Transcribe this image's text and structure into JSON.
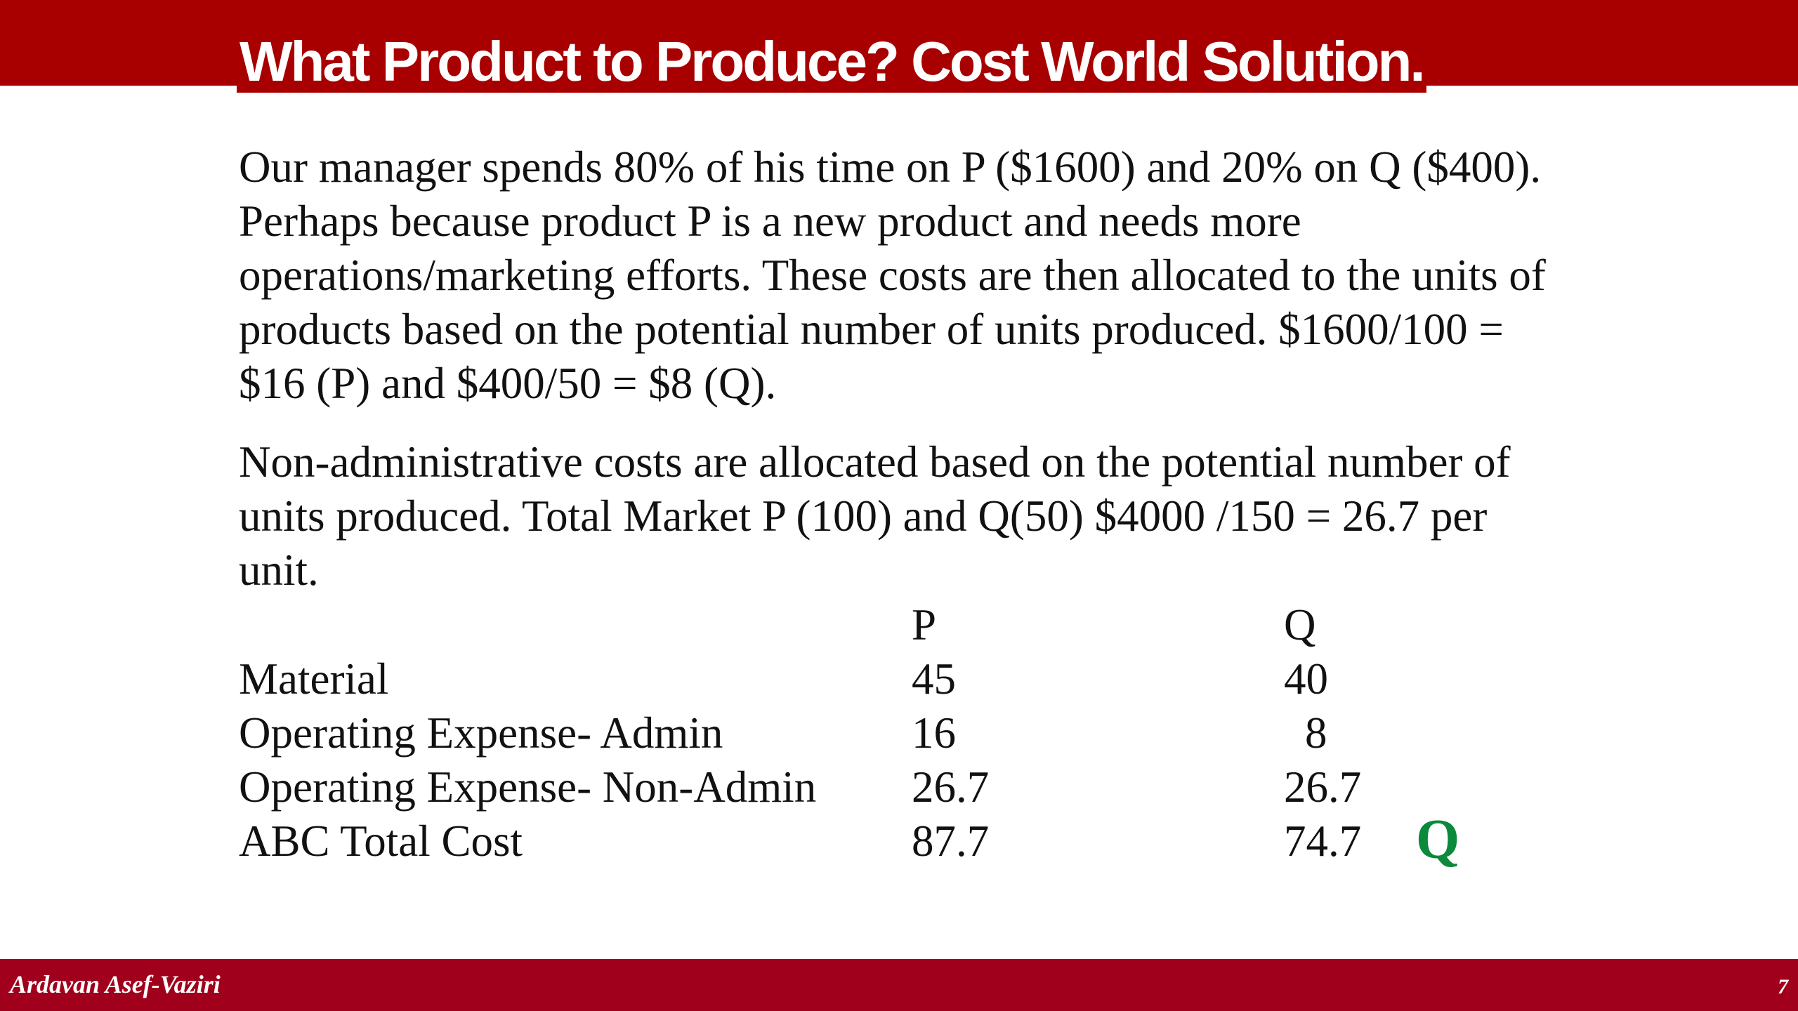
{
  "slide": {
    "title": "What Product to Produce? Cost World Solution.",
    "paragraphs": [
      "Our manager spends 80% of his time on P ($1600) and 20% on Q ($400).  Perhaps because product P is a new product and needs more operations/marketing efforts. These costs are then allocated to the units of products based on the potential number of units produced. $1600/100 = $16 (P) and $400/50 = $8 (Q).",
      "Non-administrative costs are allocated based on the potential number of units produced. Total Market P (100) and Q(50) $4000 /150 = 26.7 per unit."
    ],
    "table": {
      "headers": [
        "",
        "P",
        "Q"
      ],
      "rows": [
        {
          "label": "Material",
          "p": "45",
          "q": "40"
        },
        {
          "label": "Operating Expense- Admin",
          "p": "16",
          "q": "8"
        },
        {
          "label": "Operating Expense- Non-Admin",
          "p": "26.7",
          "q": "26.7"
        },
        {
          "label": "ABC Total Cost",
          "p": "87.7",
          "q": "74.7"
        }
      ]
    },
    "answer": "Q",
    "answer_color": "#0a8a3a",
    "colors": {
      "header_band": "#a80000",
      "footer_band": "#a0001c"
    }
  },
  "footer": {
    "author": "Ardavan Asef-Vaziri",
    "page_number": "7"
  }
}
